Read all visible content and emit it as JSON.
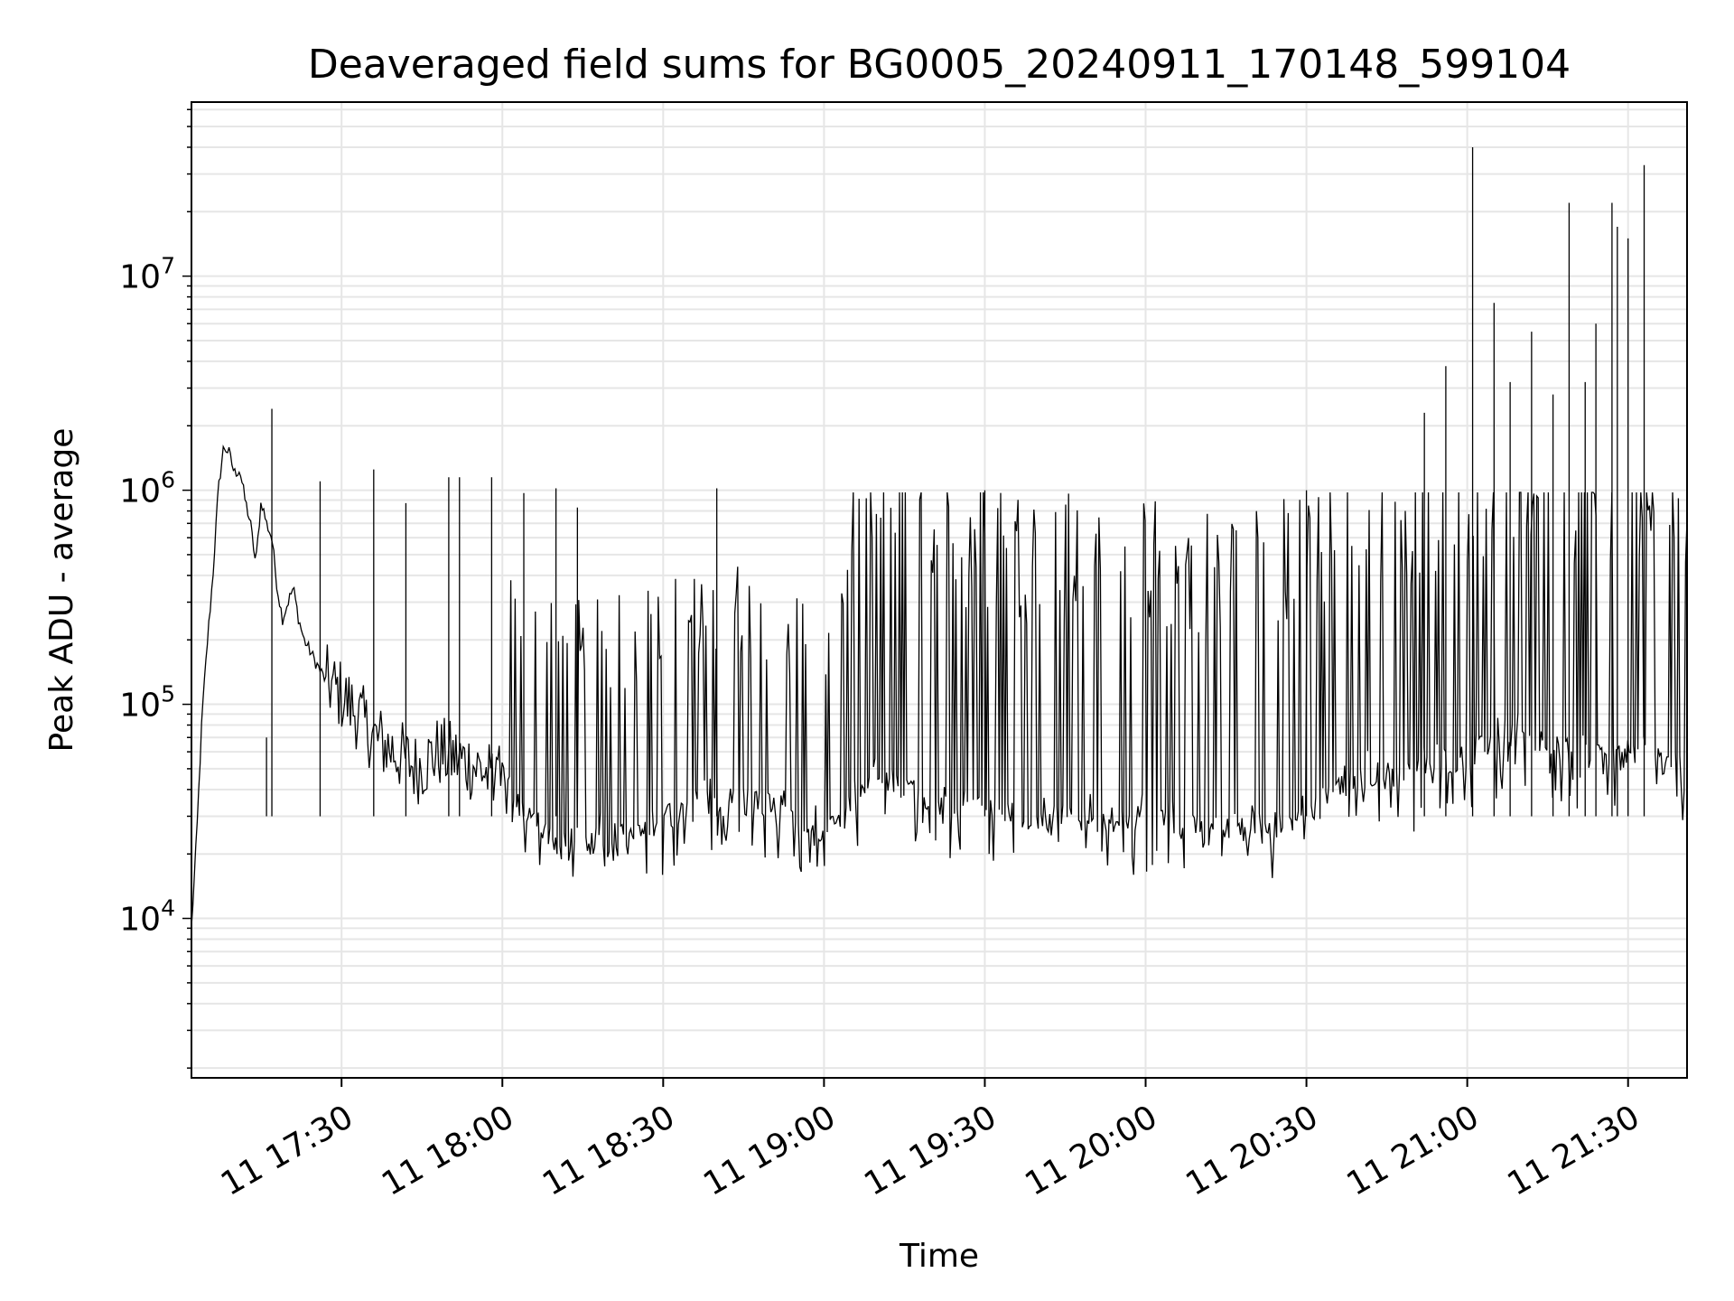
{
  "chart_data": {
    "type": "line",
    "title": "Deaveraged field sums for BG0005_20240911_170148_599104",
    "xlabel": "Time",
    "ylabel": "Peak ADU - average",
    "yscale": "log",
    "ylim": [
      1800,
      65000000
    ],
    "xlim": [
      "2024-09-11T17:02",
      "2024-09-11T21:41"
    ],
    "grid": true,
    "line_color": "#000000",
    "x_ticks": [
      {
        "value": "2024-09-11T17:30",
        "label": "11 17:30"
      },
      {
        "value": "2024-09-11T18:00",
        "label": "11 18:00"
      },
      {
        "value": "2024-09-11T18:30",
        "label": "11 18:30"
      },
      {
        "value": "2024-09-11T19:00",
        "label": "11 19:00"
      },
      {
        "value": "2024-09-11T19:30",
        "label": "11 19:30"
      },
      {
        "value": "2024-09-11T20:00",
        "label": "11 20:00"
      },
      {
        "value": "2024-09-11T20:30",
        "label": "11 20:30"
      },
      {
        "value": "2024-09-11T21:00",
        "label": "11 21:00"
      },
      {
        "value": "2024-09-11T21:30",
        "label": "11 21:30"
      }
    ],
    "y_ticks": [
      {
        "value": 10000,
        "base": "10",
        "exp": "4"
      },
      {
        "value": 100000,
        "base": "10",
        "exp": "5"
      },
      {
        "value": 1000000,
        "base": "10",
        "exp": "6"
      },
      {
        "value": 10000000,
        "base": "10",
        "exp": "7"
      }
    ],
    "series": [
      {
        "x": [
          "2024-09-11T17:02",
          "2024-09-11T17:03",
          "2024-09-11T17:04",
          "2024-09-11T17:05",
          "2024-09-11T17:06",
          "2024-09-11T17:07",
          "2024-09-11T17:08",
          "2024-09-11T17:09",
          "2024-09-11T17:10",
          "2024-09-11T17:11",
          "2024-09-11T17:12",
          "2024-09-11T17:13",
          "2024-09-11T17:14",
          "2024-09-11T17:15",
          "2024-09-11T17:16",
          "2024-09-11T17:17",
          "2024-09-11T17:18",
          "2024-09-11T17:19",
          "2024-09-11T17:20",
          "2024-09-11T17:21",
          "2024-09-11T17:22",
          "2024-09-11T17:23",
          "2024-09-11T17:24",
          "2024-09-11T17:25",
          "2024-09-11T17:27",
          "2024-09-11T17:30",
          "2024-09-11T17:33",
          "2024-09-11T17:36",
          "2024-09-11T17:40",
          "2024-09-11T17:44",
          "2024-09-11T17:48",
          "2024-09-11T17:52",
          "2024-09-11T17:56",
          "2024-09-11T18:00",
          "2024-09-11T18:05",
          "2024-09-11T18:10",
          "2024-09-11T18:20",
          "2024-09-11T18:30",
          "2024-09-11T18:40",
          "2024-09-11T18:50",
          "2024-09-11T19:00",
          "2024-09-11T19:10",
          "2024-09-11T19:20",
          "2024-09-11T19:30",
          "2024-09-11T19:40",
          "2024-09-11T19:50",
          "2024-09-11T20:00",
          "2024-09-11T20:10",
          "2024-09-11T20:20",
          "2024-09-11T20:30",
          "2024-09-11T20:40",
          "2024-09-11T20:50",
          "2024-09-11T21:00",
          "2024-09-11T21:10",
          "2024-09-11T21:20",
          "2024-09-11T21:30",
          "2024-09-11T21:41"
        ],
        "y": [
          9000,
          25000,
          90000,
          200000,
          400000,
          1000000,
          1600000,
          1500000,
          1200000,
          1250000,
          900000,
          700000,
          450000,
          900000,
          700000,
          600000,
          350000,
          250000,
          300000,
          350000,
          250000,
          200000,
          180000,
          160000,
          130000,
          110000,
          90000,
          70000,
          60000,
          50000,
          60000,
          55000,
          50000,
          40000,
          25000,
          20000,
          20000,
          25000,
          30000,
          30000,
          20000,
          40000,
          30000,
          30000,
          25000,
          25000,
          25000,
          22000,
          23000,
          25000,
          40000,
          40000,
          50000,
          60000,
          50000,
          50000,
          45000
        ],
        "spikes": [
          {
            "x": "2024-09-11T17:17",
            "y": 2400000
          },
          {
            "x": "2024-09-11T17:16",
            "y": 70000
          },
          {
            "x": "2024-09-11T17:26",
            "y": 1100000
          },
          {
            "x": "2024-09-11T17:36",
            "y": 1250000
          },
          {
            "x": "2024-09-11T17:42",
            "y": 870000
          },
          {
            "x": "2024-09-11T17:50",
            "y": 1150000
          },
          {
            "x": "2024-09-11T17:52",
            "y": 1150000
          },
          {
            "x": "2024-09-11T17:58",
            "y": 1150000
          },
          {
            "x": "2024-09-11T18:04",
            "y": 970000
          },
          {
            "x": "2024-09-11T18:10",
            "y": 1020000
          },
          {
            "x": "2024-09-11T18:14",
            "y": 830000
          },
          {
            "x": "2024-09-11T18:40",
            "y": 1020000
          },
          {
            "x": "2024-09-11T19:30",
            "y": 1000000
          },
          {
            "x": "2024-09-11T20:30",
            "y": 1000000
          },
          {
            "x": "2024-09-11T20:52",
            "y": 2300000
          },
          {
            "x": "2024-09-11T20:56",
            "y": 3800000
          },
          {
            "x": "2024-09-11T21:01",
            "y": 40000000
          },
          {
            "x": "2024-09-11T21:05",
            "y": 7500000
          },
          {
            "x": "2024-09-11T21:08",
            "y": 3200000
          },
          {
            "x": "2024-09-11T21:12",
            "y": 5500000
          },
          {
            "x": "2024-09-11T21:16",
            "y": 2800000
          },
          {
            "x": "2024-09-11T21:19",
            "y": 22000000
          },
          {
            "x": "2024-09-11T21:22",
            "y": 3200000
          },
          {
            "x": "2024-09-11T21:24",
            "y": 6000000
          },
          {
            "x": "2024-09-11T21:27",
            "y": 22000000
          },
          {
            "x": "2024-09-11T21:28",
            "y": 17000000
          },
          {
            "x": "2024-09-11T21:30",
            "y": 15000000
          },
          {
            "x": "2024-09-11T21:33",
            "y": 33000000
          }
        ]
      }
    ]
  }
}
